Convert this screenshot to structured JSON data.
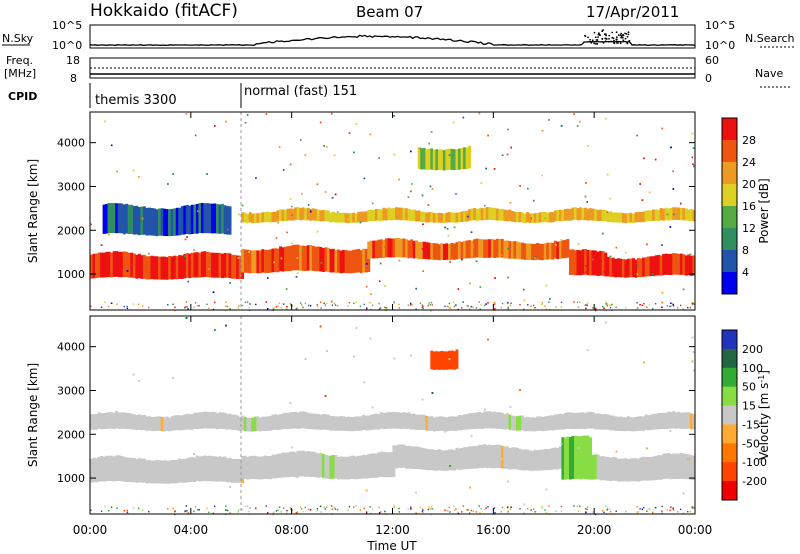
{
  "header": {
    "station": "Hokkaido (fitACF)",
    "beam": "Beam 07",
    "date": "17/Apr/2011"
  },
  "top_panels": {
    "nsky_label": "N.Sky",
    "nsky_ticks": [
      "10^5",
      "10^0"
    ],
    "nsearch_label": "N.Search",
    "nsearch_ticks": [
      "10^5",
      "10^0"
    ],
    "freq_label": "Freq.",
    "freq_unit": "[MHz]",
    "freq_ticks": [
      "18",
      "8"
    ],
    "nave_label": "Nave",
    "nave_ticks": [
      "60",
      "0"
    ],
    "cpid_label": "CPID",
    "cpid_modes": [
      {
        "name": "themis 3300",
        "start_hour": 0
      },
      {
        "name": "normal (fast) 151",
        "start_hour": 6
      }
    ]
  },
  "chart_data": [
    {
      "type": "heatmap",
      "title": "",
      "xlabel": "",
      "ylabel": "Slant Range [km]",
      "xlim_hours": [
        0,
        24
      ],
      "ylim": [
        180,
        4700
      ],
      "x_tick_labels": [
        "00:00",
        "04:00",
        "08:00",
        "12:00",
        "16:00",
        "20:00",
        "00:00"
      ],
      "y_ticks": [
        1000,
        2000,
        3000,
        4000
      ],
      "colorbar": {
        "label": "Power [dB]",
        "range": [
          0,
          32
        ],
        "ticks": [
          "4",
          "8",
          "12",
          "16",
          "20",
          "24",
          "28"
        ],
        "colors": [
          "#0000ee",
          "#2255aa",
          "#2f8f5f",
          "#55aa44",
          "#ddd022",
          "#ee9922",
          "#ee5511",
          "#ee1111"
        ]
      },
      "bands": [
        {
          "h0": 0,
          "h1": 6,
          "r_top": 1450,
          "r_bot": 900,
          "value": 29
        },
        {
          "h0": 6,
          "h1": 11,
          "r_top": 1600,
          "r_bot": 1050,
          "value": 26
        },
        {
          "h0": 11,
          "h1": 19,
          "r_top": 1750,
          "r_bot": 1350,
          "value": 25
        },
        {
          "h0": 19,
          "h1": 20.5,
          "r_top": 1500,
          "r_bot": 950,
          "value": 28
        },
        {
          "h0": 20.5,
          "h1": 24,
          "r_top": 1400,
          "r_bot": 950,
          "value": 29
        },
        {
          "h0": 0.5,
          "h1": 5.5,
          "r_top": 2550,
          "r_bot": 1900,
          "value": 6
        },
        {
          "h0": 6,
          "h1": 24,
          "r_top": 2450,
          "r_bot": 2200,
          "value": 20
        },
        {
          "h0": 13,
          "h1": 15,
          "r_top": 3900,
          "r_bot": 3400,
          "value": 16
        }
      ]
    },
    {
      "type": "heatmap",
      "title": "",
      "xlabel": "Time UT",
      "ylabel": "Slant Range [km]",
      "xlim_hours": [
        0,
        24
      ],
      "ylim": [
        180,
        4700
      ],
      "x_tick_labels": [
        "00:00",
        "04:00",
        "08:00",
        "12:00",
        "16:00",
        "20:00",
        "00:00"
      ],
      "y_ticks": [
        1000,
        2000,
        3000,
        4000
      ],
      "colorbar": {
        "label": "Velocity [m s^-1]",
        "range": [
          -250,
          250
        ],
        "ticks": [
          "200",
          "100",
          "50",
          "15",
          "-15",
          "-50",
          "-100",
          "-200"
        ],
        "colors": [
          "#2233bb",
          "#226644",
          "#33aa33",
          "#88dd44",
          "#c8c8c8",
          "#ffaa33",
          "#ff7700",
          "#ff4400",
          "#ee0000"
        ]
      },
      "bands": [
        {
          "h0": 0,
          "h1": 6,
          "r_top": 1450,
          "r_bot": 900,
          "value": 0
        },
        {
          "h0": 6,
          "h1": 12,
          "r_top": 1550,
          "r_bot": 1000,
          "value": 0
        },
        {
          "h0": 12,
          "h1": 19,
          "r_top": 1700,
          "r_bot": 1200,
          "value": 0
        },
        {
          "h0": 19,
          "h1": 24,
          "r_top": 1500,
          "r_bot": 950,
          "value": 0
        },
        {
          "h0": 0,
          "h1": 24,
          "r_top": 2450,
          "r_bot": 2100,
          "value": 0
        },
        {
          "h0": 18.7,
          "h1": 19.9,
          "r_top": 1900,
          "r_bot": 950,
          "value": 70
        },
        {
          "h0": 13.5,
          "h1": 14.5,
          "r_top": 3950,
          "r_bot": 3500,
          "value": -170
        }
      ]
    }
  ]
}
